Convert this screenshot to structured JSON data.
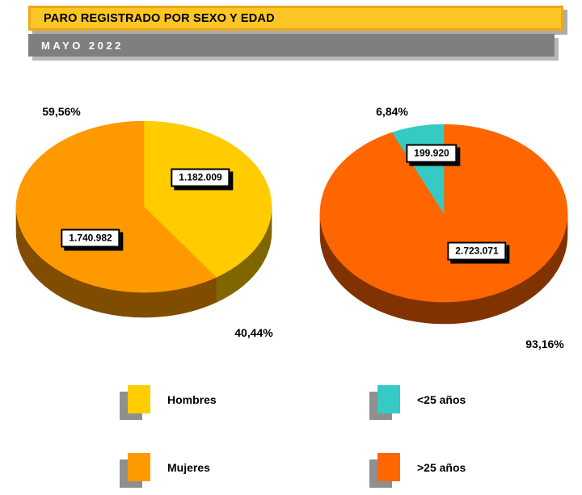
{
  "header": {
    "title": "PARO REGISTRADO POR SEXO Y EDAD",
    "subtitle": "MAYO 2022"
  },
  "colors": {
    "title_bar_bg": "#FCC626",
    "title_bar_border": "#EFA713",
    "subtitle_bar_bg": "#7F7F7F",
    "label_box_bg": "#FFFFFF"
  },
  "chart_data": [
    {
      "type": "pie",
      "name": "paro-por-sexo",
      "legend_position": "bottom",
      "start_angle": "12-oclock",
      "direction": "clockwise",
      "draw_order": [
        0,
        1
      ],
      "slices": [
        {
          "label": "Hombres",
          "value": 1182009,
          "display_value": "1.182.009",
          "pct": 40.44,
          "pct_label": "40,44%",
          "color": "#FFCC00"
        },
        {
          "label": "Mujeres",
          "value": 1740982,
          "display_value": "1.740.982",
          "pct": 59.56,
          "pct_label": "59,56%",
          "color": "#FF9900"
        }
      ]
    },
    {
      "type": "pie",
      "name": "paro-por-edad",
      "legend_position": "bottom",
      "start_angle": "12-oclock",
      "direction": "clockwise",
      "draw_order": [
        1,
        0
      ],
      "slices": [
        {
          "label": "<25 años",
          "value": 199920,
          "display_value": "199.920",
          "pct": 6.84,
          "pct_label": "6,84%",
          "color": "#35CBC4"
        },
        {
          "label": ">25 años",
          "value": 2723071,
          "display_value": "2.723.071",
          "pct": 93.16,
          "pct_label": "93,16%",
          "color": "#FF6600"
        }
      ]
    }
  ]
}
